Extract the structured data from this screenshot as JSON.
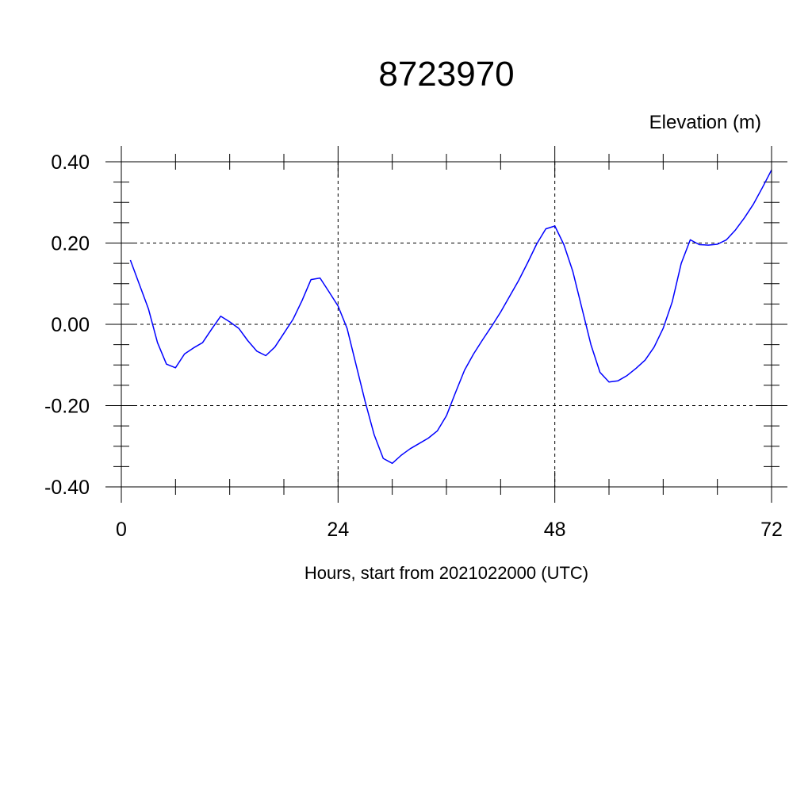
{
  "chart_data": {
    "type": "line",
    "title": "8723970",
    "ylabel": "Elevation (m)",
    "xlabel": "Hours, start from 2021022000 (UTC)",
    "xlim": [
      0,
      72
    ],
    "ylim": [
      -0.4,
      0.4
    ],
    "xticks": [
      0,
      24,
      48,
      72
    ],
    "xtick_labels": [
      "0",
      "24",
      "48",
      "72"
    ],
    "yticks": [
      -0.4,
      -0.2,
      0.0,
      0.2,
      0.4
    ],
    "ytick_labels": [
      "-0.40",
      "-0.20",
      "0.00",
      "0.20",
      "0.40"
    ],
    "grid": true,
    "line_color": "#0000ff",
    "series": [
      {
        "x": [
          1,
          2,
          3,
          4,
          5,
          6,
          7,
          8,
          9,
          10,
          11,
          12,
          13,
          14,
          15,
          16,
          17,
          18,
          19,
          20,
          21,
          22,
          23,
          24,
          25,
          26,
          27,
          28,
          29,
          30,
          31,
          32,
          33,
          34,
          35,
          36,
          37,
          38,
          39,
          40,
          41,
          42,
          43,
          44,
          45,
          46,
          47,
          48,
          49,
          50,
          51,
          52,
          53,
          54,
          55,
          56,
          57,
          58,
          59,
          60,
          61,
          62,
          63,
          64,
          65,
          66,
          67,
          68,
          69,
          70,
          71,
          72
        ],
        "y": [
          0.158,
          0.098,
          0.038,
          -0.045,
          -0.098,
          -0.107,
          -0.073,
          -0.058,
          -0.045,
          -0.012,
          0.02,
          0.006,
          -0.01,
          -0.04,
          -0.066,
          -0.077,
          -0.056,
          -0.022,
          0.012,
          0.058,
          0.11,
          0.114,
          0.08,
          0.045,
          -0.01,
          -0.1,
          -0.19,
          -0.272,
          -0.33,
          -0.342,
          -0.322,
          -0.306,
          -0.293,
          -0.28,
          -0.262,
          -0.225,
          -0.168,
          -0.113,
          -0.073,
          -0.038,
          -0.005,
          0.03,
          0.069,
          0.108,
          0.152,
          0.198,
          0.235,
          0.242,
          0.196,
          0.13,
          0.04,
          -0.05,
          -0.118,
          -0.142,
          -0.139,
          -0.126,
          -0.108,
          -0.088,
          -0.056,
          -0.01,
          0.055,
          0.15,
          0.208,
          0.196,
          0.195,
          0.197,
          0.208,
          0.232,
          0.262,
          0.296,
          0.337,
          0.38
        ]
      }
    ]
  }
}
